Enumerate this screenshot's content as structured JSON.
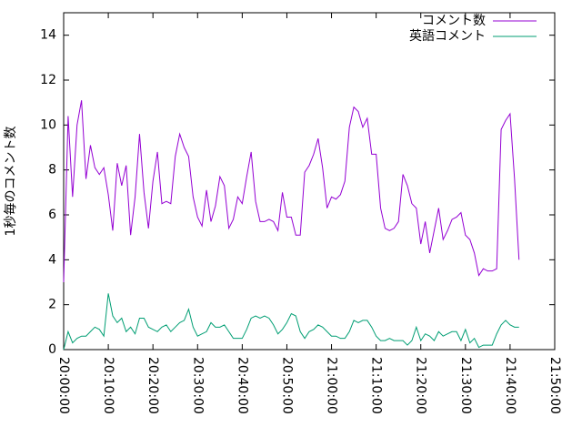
{
  "chart_data": {
    "type": "line",
    "y_label": "1秒毎のコメント数",
    "legend": "top right",
    "ylim": [
      0,
      15
    ],
    "yticks": [
      0,
      2,
      4,
      6,
      8,
      10,
      12,
      14
    ],
    "xlim": [
      "20:00:00",
      "21:50:00"
    ],
    "xticks": [
      "20:00:00",
      "20:10:00",
      "20:20:00",
      "20:30:00",
      "20:40:00",
      "20:50:00",
      "21:00:00",
      "21:10:00",
      "21:20:00",
      "21:30:00",
      "21:40:00",
      "21:50:00"
    ],
    "x": [
      "20:00:00",
      "20:01:00",
      "20:02:00",
      "20:03:00",
      "20:04:00",
      "20:05:00",
      "20:06:00",
      "20:07:00",
      "20:08:00",
      "20:09:00",
      "20:10:00",
      "20:11:00",
      "20:12:00",
      "20:13:00",
      "20:14:00",
      "20:15:00",
      "20:16:00",
      "20:17:00",
      "20:18:00",
      "20:19:00",
      "20:20:00",
      "20:21:00",
      "20:22:00",
      "20:23:00",
      "20:24:00",
      "20:25:00",
      "20:26:00",
      "20:27:00",
      "20:28:00",
      "20:29:00",
      "20:30:00",
      "20:31:00",
      "20:32:00",
      "20:33:00",
      "20:34:00",
      "20:35:00",
      "20:36:00",
      "20:37:00",
      "20:38:00",
      "20:39:00",
      "20:40:00",
      "20:41:00",
      "20:42:00",
      "20:43:00",
      "20:44:00",
      "20:45:00",
      "20:46:00",
      "20:47:00",
      "20:48:00",
      "20:49:00",
      "20:50:00",
      "20:51:00",
      "20:52:00",
      "20:53:00",
      "20:54:00",
      "20:55:00",
      "20:56:00",
      "20:57:00",
      "20:58:00",
      "20:59:00",
      "21:00:00",
      "21:01:00",
      "21:02:00",
      "21:03:00",
      "21:04:00",
      "21:05:00",
      "21:06:00",
      "21:07:00",
      "21:08:00",
      "21:09:00",
      "21:10:00",
      "21:11:00",
      "21:12:00",
      "21:13:00",
      "21:14:00",
      "21:15:00",
      "21:16:00",
      "21:17:00",
      "21:18:00",
      "21:19:00",
      "21:20:00",
      "21:21:00",
      "21:22:00",
      "21:23:00",
      "21:24:00",
      "21:25:00",
      "21:26:00",
      "21:27:00",
      "21:28:00",
      "21:29:00",
      "21:30:00",
      "21:31:00",
      "21:32:00",
      "21:33:00",
      "21:34:00",
      "21:35:00",
      "21:36:00",
      "21:37:00",
      "21:38:00",
      "21:39:00",
      "21:40:00",
      "21:41:00",
      "21:42:00"
    ],
    "series": [
      {
        "name": "コメント数",
        "color": "#9400d3",
        "values": [
          3.0,
          10.4,
          6.8,
          10.0,
          11.1,
          7.6,
          9.1,
          8.1,
          7.8,
          8.1,
          6.9,
          5.3,
          8.3,
          7.3,
          8.2,
          5.1,
          6.8,
          9.6,
          7.0,
          5.4,
          7.5,
          8.8,
          6.5,
          6.6,
          6.5,
          8.6,
          9.6,
          9.0,
          8.6,
          6.8,
          5.9,
          5.5,
          7.1,
          5.7,
          6.4,
          7.7,
          7.3,
          5.4,
          5.8,
          6.8,
          6.5,
          7.7,
          8.8,
          6.6,
          5.7,
          5.7,
          5.8,
          5.7,
          5.3,
          7.0,
          5.9,
          5.9,
          5.1,
          5.1,
          7.9,
          8.2,
          8.7,
          9.4,
          8.1,
          6.3,
          6.8,
          6.7,
          6.9,
          7.5,
          9.9,
          10.8,
          10.6,
          9.9,
          10.3,
          8.7,
          8.7,
          6.3,
          5.4,
          5.3,
          5.4,
          5.7,
          7.8,
          7.3,
          6.5,
          6.3,
          4.7,
          5.7,
          4.3,
          5.3,
          6.3,
          4.9,
          5.3,
          5.8,
          5.9,
          6.1,
          5.1,
          4.9,
          4.3,
          3.3,
          3.6,
          3.5,
          3.5,
          3.6,
          9.8,
          10.2,
          10.5,
          7.6,
          4.0
        ]
      },
      {
        "name": "英語コメント",
        "color": "#009e73",
        "values": [
          0.0,
          0.8,
          0.3,
          0.5,
          0.6,
          0.6,
          0.8,
          1.0,
          0.9,
          0.6,
          2.5,
          1.5,
          1.2,
          1.4,
          0.8,
          1.0,
          0.7,
          1.4,
          1.4,
          1.0,
          0.9,
          0.8,
          1.0,
          1.1,
          0.8,
          1.0,
          1.2,
          1.3,
          1.8,
          1.0,
          0.6,
          0.7,
          0.8,
          1.2,
          1.0,
          1.0,
          1.1,
          0.8,
          0.5,
          0.5,
          0.5,
          0.9,
          1.4,
          1.5,
          1.4,
          1.5,
          1.4,
          1.1,
          0.7,
          0.9,
          1.2,
          1.6,
          1.5,
          0.8,
          0.5,
          0.8,
          0.9,
          1.1,
          1.0,
          0.8,
          0.6,
          0.6,
          0.5,
          0.5,
          0.8,
          1.3,
          1.2,
          1.3,
          1.3,
          1.0,
          0.6,
          0.4,
          0.4,
          0.5,
          0.4,
          0.4,
          0.4,
          0.2,
          0.4,
          1.0,
          0.4,
          0.7,
          0.6,
          0.4,
          0.8,
          0.6,
          0.7,
          0.8,
          0.8,
          0.4,
          0.9,
          0.3,
          0.5,
          0.1,
          0.2,
          0.2,
          0.2,
          0.7,
          1.1,
          1.3,
          1.1,
          1.0,
          1.0
        ]
      }
    ]
  }
}
